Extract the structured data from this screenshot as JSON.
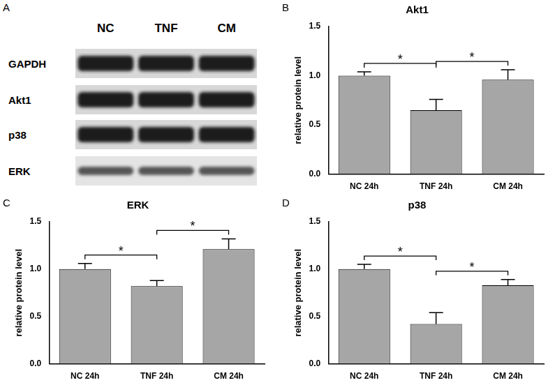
{
  "blot": {
    "panel_label": "A",
    "lanes": [
      "NC",
      "TNF",
      "CM"
    ],
    "proteins": [
      "GAPDH",
      "Akt1",
      "p38",
      "ERK"
    ]
  },
  "chart_data": [
    {
      "panel_label": "B",
      "type": "bar",
      "title": "Akt1",
      "y_label": "relative protein level",
      "categories": [
        "NC 24h",
        "TNF 24h",
        "CM 24h"
      ],
      "values": [
        1.0,
        0.65,
        0.96
      ],
      "error": [
        0.04,
        0.11,
        0.1
      ],
      "color": "#a6a6a6",
      "ylim": [
        0,
        1.5
      ],
      "yticks": [
        {
          "value": 0,
          "label": "0.0"
        },
        {
          "value": 0.5,
          "label": "0.5"
        },
        {
          "value": 1,
          "label": "1.0"
        },
        {
          "value": 1.5,
          "label": "1.5"
        }
      ],
      "grid": false,
      "annotations": [
        {
          "from": "NC 24h",
          "to": "TNF 24h",
          "text": "*"
        },
        {
          "from": "TNF 24h",
          "to": "CM 24h",
          "text": "*"
        }
      ]
    },
    {
      "panel_label": "C",
      "type": "bar",
      "title": "ERK",
      "y_label": "relative protein level",
      "categories": [
        "NC 24h",
        "TNF 24h",
        "CM 24h"
      ],
      "values": [
        1.0,
        0.82,
        1.21
      ],
      "error": [
        0.06,
        0.06,
        0.11
      ],
      "color": "#a6a6a6",
      "ylim": [
        0,
        1.5
      ],
      "yticks": [
        {
          "value": 0,
          "label": "0.0"
        },
        {
          "value": 0.5,
          "label": "0.5"
        },
        {
          "value": 1,
          "label": "1.0"
        },
        {
          "value": 1.5,
          "label": "1.5"
        }
      ],
      "grid": false,
      "annotations": [
        {
          "from": "NC 24h",
          "to": "TNF 24h",
          "text": "*"
        },
        {
          "from": "TNF 24h",
          "to": "CM 24h",
          "text": "*"
        }
      ]
    },
    {
      "panel_label": "D",
      "type": "bar",
      "title": "p38",
      "y_label": "relative protein level",
      "categories": [
        "NC 24h",
        "TNF 24h",
        "CM 24h"
      ],
      "values": [
        1.0,
        0.42,
        0.83
      ],
      "error": [
        0.05,
        0.12,
        0.06
      ],
      "color": "#a6a6a6",
      "ylim": [
        0,
        1.5
      ],
      "yticks": [
        {
          "value": 0,
          "label": "0.0"
        },
        {
          "value": 0.5,
          "label": "0.5"
        },
        {
          "value": 1,
          "label": "1.0"
        },
        {
          "value": 1.5,
          "label": "1.5"
        }
      ],
      "grid": false,
      "annotations": [
        {
          "from": "NC 24h",
          "to": "TNF 24h",
          "text": "*"
        },
        {
          "from": "TNF 24h",
          "to": "CM 24h",
          "text": "*"
        }
      ]
    }
  ]
}
